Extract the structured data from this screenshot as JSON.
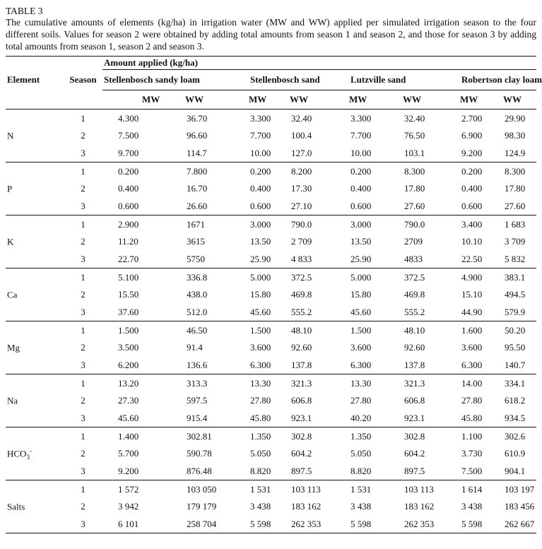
{
  "doc": {
    "label": "TABLE 3",
    "caption": "The cumulative amounts of elements (kg/ha) in irrigation water (MW and WW) applied per simulated irrigation season to the four different soils. Values for season 2 were obtained by adding total amounts from season 1 and season 2, and those for season 3 by adding total amounts from season 1, season 2 and season 3."
  },
  "table": {
    "amount_header": "Amount applied (kg/ha)",
    "element_header": "Element",
    "season_header": "Season",
    "groups": [
      "Stellenbosch sandy loam",
      "Stellenbosch sand",
      "Lutzville sand",
      "Robertson clay loam"
    ],
    "sub_headers": [
      "MW",
      "WW",
      "MW",
      "WW",
      "MW",
      "WW",
      "MW",
      "WW"
    ],
    "rows": [
      {
        "element": {
          "base": "N",
          "sub": "",
          "sup": ""
        },
        "seasons": [
          {
            "season": "1",
            "values": [
              "4.300",
              "36.70",
              "3.300",
              "32.40",
              "3.300",
              "32.40",
              "2.700",
              "29.90"
            ]
          },
          {
            "season": "2",
            "values": [
              "7.500",
              "96.60",
              "7.700",
              "100.4",
              "7.700",
              "76.50",
              "6.900",
              "98.30"
            ]
          },
          {
            "season": "3",
            "values": [
              "9.700",
              "114.7",
              "10.00",
              "127.0",
              "10.00",
              "103.1",
              "9.200",
              "124.9"
            ]
          }
        ]
      },
      {
        "element": {
          "base": "P",
          "sub": "",
          "sup": ""
        },
        "seasons": [
          {
            "season": "1",
            "values": [
              "0.200",
              "7.800",
              "0.200",
              "8.200",
              "0.200",
              "8.300",
              "0.200",
              "8.300"
            ]
          },
          {
            "season": "2",
            "values": [
              "0.400",
              "16.70",
              "0.400",
              "17.30",
              "0.400",
              "17.80",
              "0.400",
              "17.80"
            ]
          },
          {
            "season": "3",
            "values": [
              "0.600",
              "26.60",
              "0.600",
              "27.10",
              "0.600",
              "27.60",
              "0.600",
              "27.60"
            ]
          }
        ]
      },
      {
        "element": {
          "base": "K",
          "sub": "",
          "sup": ""
        },
        "seasons": [
          {
            "season": "1",
            "values": [
              "2.900",
              "1671",
              "3.000",
              "790.0",
              "3.000",
              "790.0",
              "3.400",
              "1 683"
            ]
          },
          {
            "season": "2",
            "values": [
              "11.20",
              "3615",
              "13.50",
              "2 709",
              "13.50",
              "2709",
              "10.10",
              "3 709"
            ]
          },
          {
            "season": "3",
            "values": [
              "22.70",
              "5750",
              "25.90",
              "4 833",
              "25.90",
              "4833",
              "22.50",
              "5 832"
            ]
          }
        ]
      },
      {
        "element": {
          "base": "Ca",
          "sub": "",
          "sup": ""
        },
        "seasons": [
          {
            "season": "1",
            "values": [
              "5.100",
              "336.8",
              "5.000",
              "372.5",
              "5.000",
              "372.5",
              "4.900",
              "383.1"
            ]
          },
          {
            "season": "2",
            "values": [
              "15.50",
              "438.0",
              "15.80",
              "469.8",
              "15.80",
              "469.8",
              "15.10",
              "494.5"
            ]
          },
          {
            "season": "3",
            "values": [
              "37.60",
              "512.0",
              "45.60",
              "555.2",
              "45.60",
              "555.2",
              "44.90",
              "579.9"
            ]
          }
        ]
      },
      {
        "element": {
          "base": "Mg",
          "sub": "",
          "sup": ""
        },
        "seasons": [
          {
            "season": "1",
            "values": [
              "1.500",
              "46.50",
              "1.500",
              "48.10",
              "1.500",
              "48.10",
              "1.600",
              "50.20"
            ]
          },
          {
            "season": "2",
            "values": [
              "3.500",
              "91.4",
              "3.600",
              "92.60",
              "3.600",
              "92.60",
              "3.600",
              "95.50"
            ]
          },
          {
            "season": "3",
            "values": [
              "6.200",
              "136.6",
              "6.300",
              "137.8",
              "6.300",
              "137.8",
              "6.300",
              "140.7"
            ]
          }
        ]
      },
      {
        "element": {
          "base": "Na",
          "sub": "",
          "sup": ""
        },
        "seasons": [
          {
            "season": "1",
            "values": [
              "13.20",
              "313.3",
              "13.30",
              "321.3",
              "13.30",
              "321.3",
              "14.00",
              "334.1"
            ]
          },
          {
            "season": "2",
            "values": [
              "27.30",
              "597.5",
              "27.80",
              "606.8",
              "27.80",
              "606.8",
              "27.80",
              "618.2"
            ]
          },
          {
            "season": "3",
            "values": [
              "45.60",
              "915.4",
              "45.80",
              "923.1",
              "40.20",
              "923.1",
              "45.80",
              "934.5"
            ]
          }
        ]
      },
      {
        "element": {
          "base": "HCO",
          "sub": "3",
          "sup": "-"
        },
        "seasons": [
          {
            "season": "1",
            "values": [
              "1.400",
              "302.81",
              "1.350",
              "302.8",
              "1.350",
              "302.8",
              "1.100",
              "302.6"
            ]
          },
          {
            "season": "2",
            "values": [
              "5.700",
              "590.78",
              "5.050",
              "604.2",
              "5.050",
              "604.2",
              "3.730",
              "610.9"
            ]
          },
          {
            "season": "3",
            "values": [
              "9.200",
              "876.48",
              "8.820",
              "897.5",
              "8.820",
              "897.5",
              "7.500",
              "904.1"
            ]
          }
        ]
      },
      {
        "element": {
          "base": "Salts",
          "sub": "",
          "sup": ""
        },
        "seasons": [
          {
            "season": "1",
            "values": [
              "1 572",
              "103 050",
              "1 531",
              "103 113",
              "1 531",
              "103 113",
              "1 614",
              "103 197"
            ]
          },
          {
            "season": "2",
            "values": [
              "3 942",
              "179 179",
              "3 438",
              "183 162",
              "3 438",
              "183 162",
              "3 438",
              "183 456"
            ]
          },
          {
            "season": "3",
            "values": [
              "6 101",
              "258 704",
              "5 598",
              "262 353",
              "5 598",
              "262 353",
              "5 598",
              "262 667"
            ]
          }
        ]
      }
    ]
  }
}
